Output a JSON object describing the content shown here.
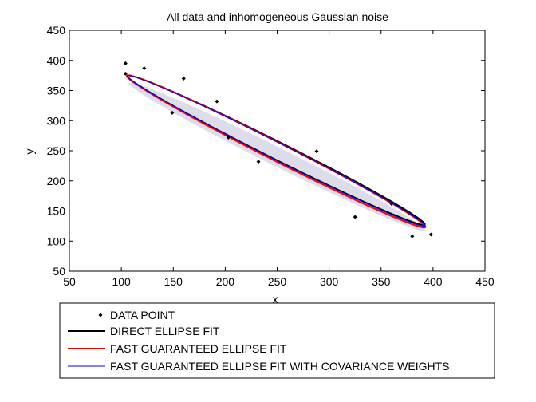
{
  "chart_data": {
    "type": "scatter",
    "title": "All data and inhomogeneous Gaussian noise",
    "xlabel": "x",
    "ylabel": "y",
    "xlim": [
      50,
      450
    ],
    "ylim": [
      50,
      450
    ],
    "xticks": [
      "50",
      "100",
      "150",
      "200",
      "250",
      "300",
      "350",
      "400",
      "450"
    ],
    "yticks": [
      "50",
      "100",
      "150",
      "200",
      "250",
      "300",
      "350",
      "400",
      "450"
    ],
    "grid": false,
    "legend_position": "bottom-outside",
    "data_points": {
      "name": "DATA POINT",
      "x": [
        104,
        104,
        122,
        149,
        160,
        192,
        203,
        232,
        288,
        325,
        360,
        380,
        398
      ],
      "y": [
        395,
        378,
        387,
        313,
        370,
        332,
        272,
        232,
        249,
        140,
        162,
        108,
        111
      ]
    },
    "noise_region": {
      "center": [
        250,
        240
      ],
      "semi_major": 188,
      "semi_minor": 13,
      "angle_deg": -40.8
    },
    "ellipses": [
      {
        "name": "DIRECT ELLIPSE FIT",
        "color": "#000000",
        "center": [
          249,
          251
        ],
        "semi_major": 189,
        "semi_minor": 12.2,
        "angle_deg": -40.9
      },
      {
        "name": "FAST GUARANTEED ELLIPSE FIT",
        "color": "#ff0000",
        "center": [
          249,
          249
        ],
        "semi_major": 191,
        "semi_minor": 12.6,
        "angle_deg": -41.3
      },
      {
        "name": "FAST GUARANTEED ELLIPSE FIT WITH COVARIANCE WEIGHTS",
        "color": "#0000ff",
        "center": [
          249,
          250
        ],
        "semi_major": 190,
        "semi_minor": 11.7,
        "angle_deg": -41.1
      }
    ],
    "colors": {
      "noise_fill": "#dcdceb",
      "point": "#000000"
    }
  }
}
